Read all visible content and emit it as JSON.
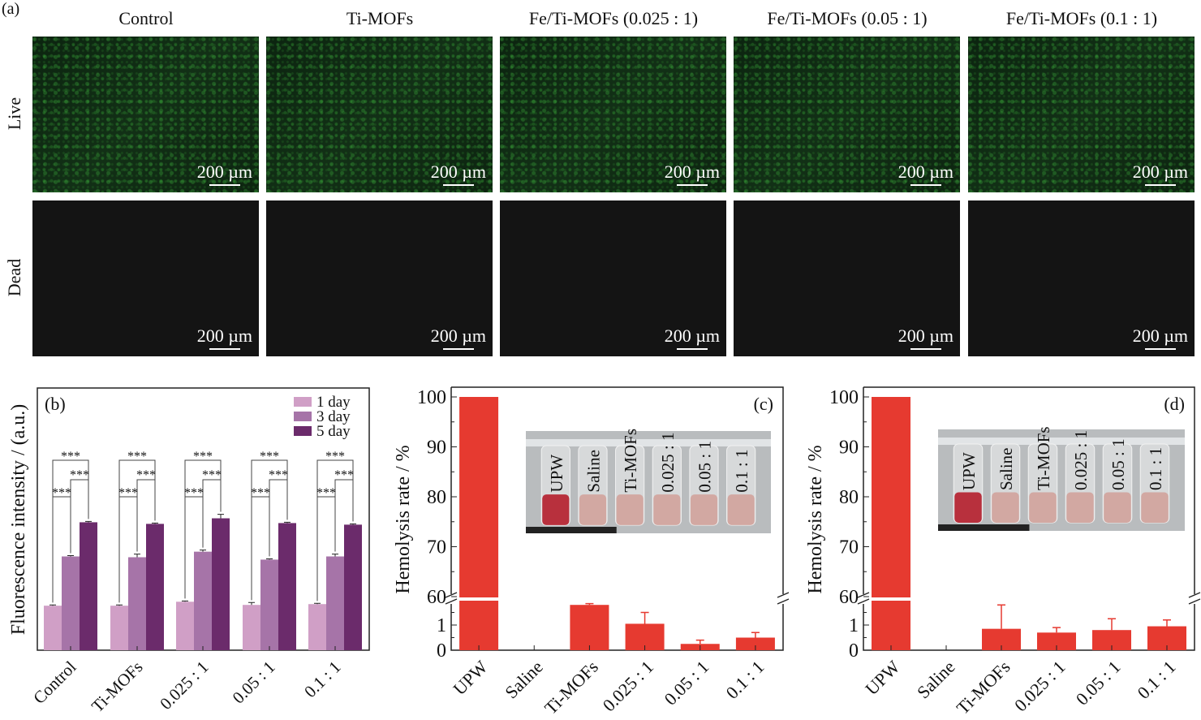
{
  "panel_a": {
    "label": "(a)",
    "columns": [
      "Control",
      "Ti-MOFs",
      "Fe/Ti-MOFs (0.025 : 1)",
      "Fe/Ti-MOFs (0.05 : 1)",
      "Fe/Ti-MOFs (0.1 : 1)"
    ],
    "rows": [
      "Live",
      "Dead"
    ],
    "scale_bar": "200 µm"
  },
  "chart_data": [
    {
      "type": "bar",
      "panel": "(b)",
      "title": "",
      "xlabel": "",
      "ylabel": "Fluorescence intensity / (a.u.)",
      "categories": [
        "Control",
        "Ti-MOFs",
        "0.025 : 1",
        "0.05 : 1",
        "0.1 : 1"
      ],
      "series": [
        {
          "name": "1 day",
          "color": "#d09fc6",
          "values": [
            56,
            56,
            61,
            57,
            58
          ],
          "errors": [
            1,
            1,
            1,
            3,
            1
          ]
        },
        {
          "name": "3 day",
          "color": "#a674a8",
          "values": [
            118,
            117,
            124,
            114,
            118
          ],
          "errors": [
            1,
            4,
            2,
            1,
            3
          ]
        },
        {
          "name": "5 day",
          "color": "#6b2b6b",
          "values": [
            161,
            159,
            166,
            160,
            158
          ],
          "errors": [
            1,
            1,
            5,
            1,
            1
          ]
        }
      ],
      "ylim": [
        0,
        330
      ],
      "legend": "top-right",
      "significance": "***",
      "grid": false
    },
    {
      "type": "bar",
      "panel": "(c)",
      "ylabel": "Hemolysis rate / %",
      "categories": [
        "UPW",
        "Saline",
        "Ti-MOFs",
        "0.025 : 1",
        "0.05 : 1",
        "0.1 : 1"
      ],
      "values": [
        100,
        0,
        1.8,
        1.05,
        0.25,
        0.5
      ],
      "errors": [
        0,
        0,
        0.05,
        0.45,
        0.15,
        0.2
      ],
      "color": "#e63a30",
      "ylim_lower": [
        0,
        2
      ],
      "ylim_upper": [
        60,
        100
      ],
      "yticks": [
        "0",
        "1",
        "60",
        "70",
        "80",
        "90",
        "100"
      ],
      "inset_labels": [
        "UPW",
        "Saline",
        "Ti-MOFs",
        "0.025 : 1",
        "0.05 : 1",
        "0.1 : 1"
      ]
    },
    {
      "type": "bar",
      "panel": "(d)",
      "ylabel": "Hemolysis rate / %",
      "categories": [
        "UPW",
        "Saline",
        "Ti-MOFs",
        "0.025 : 1",
        "0.05 : 1",
        "0.1 : 1"
      ],
      "values": [
        100,
        0,
        0.85,
        0.7,
        0.8,
        0.95
      ],
      "errors": [
        0,
        0,
        0.95,
        0.2,
        0.45,
        0.25
      ],
      "color": "#e63a30",
      "ylim_lower": [
        0,
        2
      ],
      "ylim_upper": [
        60,
        100
      ],
      "yticks": [
        "0",
        "1",
        "60",
        "70",
        "80",
        "90",
        "100"
      ],
      "inset_labels": [
        "UPW",
        "Saline",
        "Ti-MOFs",
        "0.025 : 1",
        "0.05 : 1",
        "0.1 : 1"
      ]
    }
  ]
}
